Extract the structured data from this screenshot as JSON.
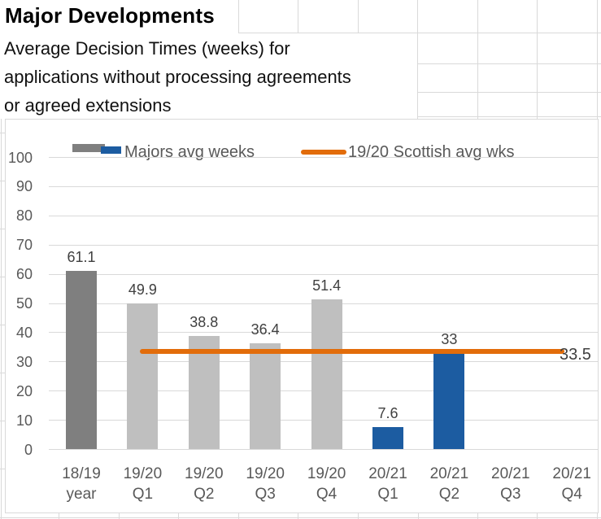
{
  "sheet": {
    "title": "Major Developments",
    "subtitle_lines": [
      "Average Decision Times (weeks) for",
      "applications without processing agreements",
      "or agreed extensions"
    ]
  },
  "chart_data": {
    "type": "bar",
    "title": "",
    "xlabel": "",
    "ylabel": "",
    "categories": [
      "18/19 year",
      "19/20 Q1",
      "19/20 Q2",
      "19/20 Q3",
      "19/20 Q4",
      "20/21 Q1",
      "20/21 Q2",
      "20/21 Q3",
      "20/21 Q4"
    ],
    "categories_lines": [
      [
        "18/19",
        "year"
      ],
      [
        "19/20",
        "Q1"
      ],
      [
        "19/20",
        "Q2"
      ],
      [
        "19/20",
        "Q3"
      ],
      [
        "19/20",
        "Q4"
      ],
      [
        "20/21",
        "Q1"
      ],
      [
        "20/21",
        "Q2"
      ],
      [
        "20/21",
        "Q3"
      ],
      [
        "20/21",
        "Q4"
      ]
    ],
    "series": [
      {
        "name": "Majors avg weeks",
        "values": [
          61.1,
          49.9,
          38.8,
          36.4,
          51.4,
          7.6,
          33,
          null,
          null
        ],
        "data_labels": [
          "61.1",
          "49.9",
          "38.8",
          "36.4",
          "51.4",
          "7.6",
          "33",
          "",
          ""
        ],
        "point_colors": [
          "#7f7f7f",
          "#bfbfbf",
          "#bfbfbf",
          "#bfbfbf",
          "#bfbfbf",
          "#1c5ca1",
          "#1c5ca1",
          null,
          null
        ]
      }
    ],
    "reference_line": {
      "name": "19/20 Scottish avg wks",
      "value": 33.5,
      "label": "33.5",
      "color": "#e26c0a",
      "start_category_index": 1,
      "end_category_index": 8
    },
    "ylim": [
      0,
      100
    ],
    "yticks": [
      0,
      10,
      20,
      30,
      40,
      50,
      60,
      70,
      80,
      90,
      100
    ],
    "grid": true,
    "legend_position": "top",
    "colors": {
      "dark_bar": "#7f7f7f",
      "light_bar": "#bfbfbf",
      "blue_bar": "#1c5ca1",
      "ref_line": "#e26c0a",
      "axis_text": "#595959",
      "data_label_text": "#404040",
      "gridline": "#d9d9d9"
    }
  }
}
